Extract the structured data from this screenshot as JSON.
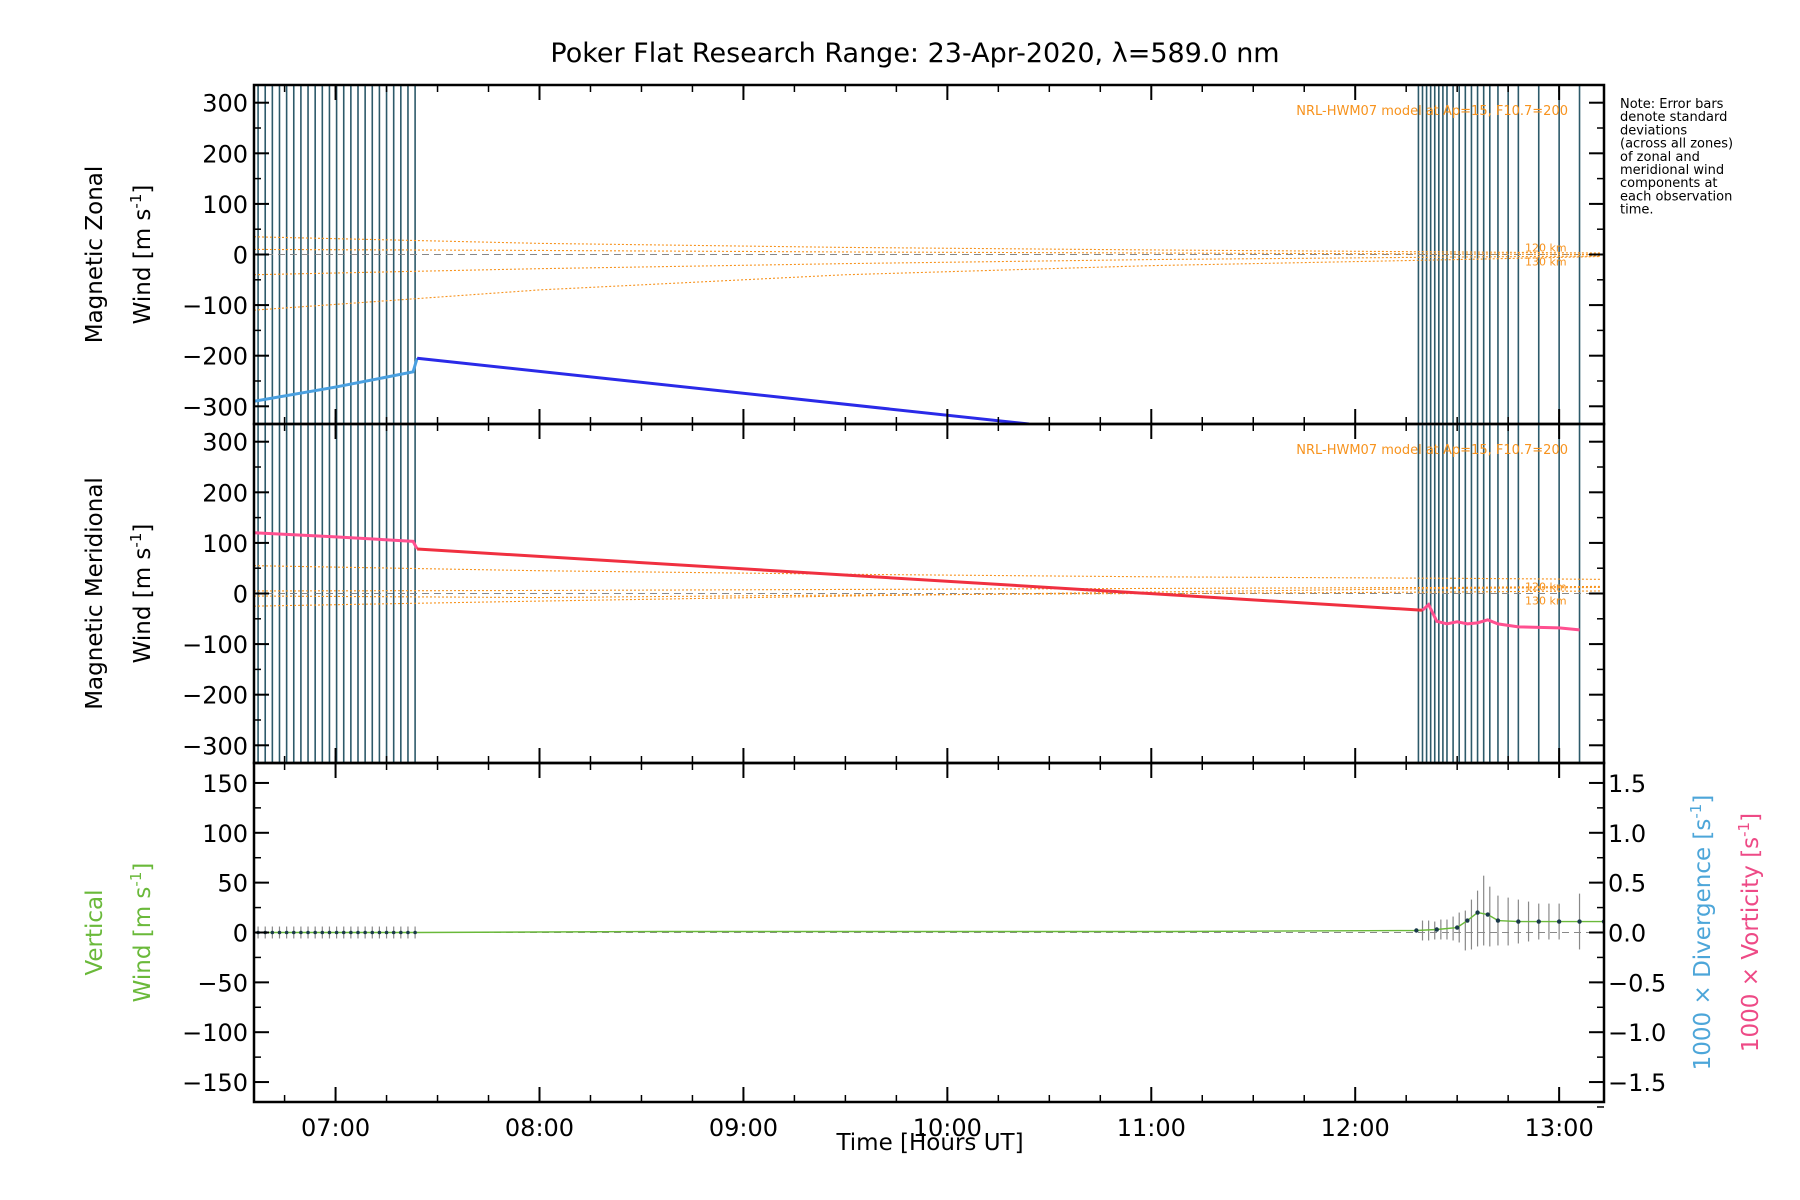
{
  "title": "Poker Flat Research Range: 23-Apr-2020, λ=589.0 nm",
  "note_lines": [
    "Note: Error bars",
    "denote standard",
    "deviations",
    "(across all zones)",
    "of zonal and",
    "meridional wind",
    "components at",
    "each observation",
    "time."
  ],
  "colors": {
    "zonal": "#2a2ae8",
    "zonal_early": "#4aa0e0",
    "meridional": "#f03040",
    "meridional_late": "#ff5090",
    "model": "#f7931e",
    "vertical": "#6ab93a",
    "divergence_label": "#4da6d9",
    "vorticity_label": "#ee4a86",
    "obs_lines": "#2d5a6a",
    "zero_line": "#888888",
    "error_bars": "#888888"
  },
  "chart_data": [
    {
      "type": "line",
      "panel": "zonal",
      "ylabel_line1": "Magnetic Zonal",
      "ylabel_line2": "Wind [m s",
      "ylabel_sup": "-1",
      "ylabel_close": "]",
      "ylim": [
        -335,
        335
      ],
      "yticks": [
        -300,
        -200,
        -100,
        0,
        100,
        200,
        300
      ],
      "ytick_labels": [
        "−300",
        "−200",
        "−100",
        "0",
        "100",
        "200",
        "300"
      ],
      "model_label": "NRL-HWM07 model at Ap=15, F10.7=200",
      "model_alt_labels": [
        "120 km",
        "130 km"
      ],
      "series": [
        {
          "role": "observed_early",
          "x": [
            6.6,
            7.0,
            7.38,
            7.4
          ],
          "y": [
            -290,
            -262,
            -232,
            -205
          ]
        },
        {
          "role": "interpolated",
          "x": [
            7.4,
            10.4
          ],
          "y": [
            -205,
            -335
          ]
        }
      ],
      "model_curves": [
        {
          "x": [
            6.6,
            8.0,
            9.5,
            11.0,
            12.5,
            13.2
          ],
          "y": [
            35,
            22,
            14,
            9,
            5,
            3
          ]
        },
        {
          "x": [
            6.6,
            8.0,
            9.5,
            11.0,
            12.5,
            13.2
          ],
          "y": [
            -40,
            -28,
            -18,
            -10,
            -5,
            -3
          ]
        },
        {
          "x": [
            6.6,
            8.0,
            9.5,
            11.0,
            12.5,
            13.2
          ],
          "y": [
            -110,
            -70,
            -40,
            -22,
            -10,
            -4
          ]
        },
        {
          "x": [
            6.6,
            8.0,
            9.5,
            11.0,
            12.5,
            13.2
          ],
          "y": [
            10,
            8,
            5,
            3,
            1,
            0
          ]
        }
      ]
    },
    {
      "type": "line",
      "panel": "meridional",
      "ylabel_line1": "Magnetic Meridional",
      "ylabel_line2": "Wind [m s",
      "ylabel_sup": "-1",
      "ylabel_close": "]",
      "ylim": [
        -335,
        335
      ],
      "yticks": [
        -300,
        -200,
        -100,
        0,
        100,
        200,
        300
      ],
      "ytick_labels": [
        "−300",
        "−200",
        "−100",
        "0",
        "100",
        "200",
        "300"
      ],
      "model_label": "NRL-HWM07 model at Ap=15, F10.7=200",
      "model_alt_labels": [
        "120 km",
        "130 km"
      ],
      "series": [
        {
          "role": "observed_early",
          "x": [
            6.6,
            7.0,
            7.38,
            7.4
          ],
          "y": [
            120,
            112,
            103,
            88
          ]
        },
        {
          "role": "interpolated",
          "x": [
            7.4,
            12.33
          ],
          "y": [
            88,
            -33
          ]
        },
        {
          "role": "observed_late",
          "x": [
            12.33,
            12.36,
            12.4,
            12.45,
            12.5,
            12.55,
            12.6,
            12.65,
            12.7,
            12.8,
            12.9,
            13.0,
            13.1
          ],
          "y": [
            -33,
            -22,
            -55,
            -60,
            -56,
            -60,
            -58,
            -52,
            -60,
            -66,
            -67,
            -68,
            -72
          ]
        }
      ],
      "model_curves": [
        {
          "x": [
            6.6,
            8.0,
            9.5,
            11.0,
            12.5,
            13.2
          ],
          "y": [
            55,
            45,
            38,
            33,
            30,
            28
          ]
        },
        {
          "x": [
            6.6,
            8.0,
            9.5,
            11.0,
            12.5,
            13.2
          ],
          "y": [
            -25,
            -15,
            -5,
            3,
            10,
            12
          ]
        },
        {
          "x": [
            6.6,
            8.0,
            9.5,
            11.0,
            12.5,
            13.2
          ],
          "y": [
            5,
            6,
            8,
            10,
            12,
            14
          ]
        },
        {
          "x": [
            6.6,
            8.0,
            9.5,
            11.0,
            12.5,
            13.2
          ],
          "y": [
            -5,
            -8,
            -3,
            0,
            3,
            5
          ]
        }
      ]
    },
    {
      "type": "line",
      "panel": "vertical",
      "ylabel_line1": "Vertical",
      "ylabel_line2": "Wind [m s",
      "ylabel_sup": "-1",
      "ylabel_close": "]",
      "ylim": [
        -170,
        170
      ],
      "yticks": [
        -150,
        -100,
        -50,
        0,
        50,
        100,
        150
      ],
      "ytick_labels": [
        "−150",
        "−100",
        "−50",
        "0",
        "50",
        "100",
        "150"
      ],
      "y2lim": [
        -1.7,
        1.7
      ],
      "y2ticks": [
        -1.5,
        -1.0,
        -0.5,
        0.0,
        0.5,
        1.0,
        1.5
      ],
      "y2tick_labels": [
        "−1.5",
        "−1.0",
        "−0.5",
        "0.0",
        "0.5",
        "1.0",
        "1.5"
      ],
      "y2label_div": "1000 × Divergence [s",
      "y2label_vor": "1000 × Vorticity [s",
      "y2label_sup": "-1",
      "y2label_close": "]",
      "xlim": [
        6.6,
        13.22
      ],
      "xticks": [
        7,
        8,
        9,
        10,
        11,
        12,
        13
      ],
      "xtick_labels": [
        "07:00",
        "08:00",
        "09:00",
        "10:00",
        "11:00",
        "12:00",
        "13:00"
      ],
      "xlabel": "Time [Hours UT]",
      "series": [
        {
          "role": "vertical_wind",
          "x": [
            6.6,
            7.4,
            8.6,
            9.85,
            11.1,
            12.3,
            12.4,
            12.5,
            12.55,
            12.6,
            12.65,
            12.7,
            12.8,
            12.9,
            13.0,
            13.1,
            13.22
          ],
          "y": [
            0,
            0,
            1,
            1,
            1,
            2,
            3,
            5,
            12,
            20,
            18,
            12,
            11,
            11,
            11,
            11,
            11
          ]
        }
      ],
      "error_bars": {
        "x": [
          12.33,
          12.36,
          12.39,
          12.42,
          12.45,
          12.48,
          12.51,
          12.54,
          12.57,
          12.6,
          12.63,
          12.66,
          12.7,
          12.75,
          12.8,
          12.85,
          12.9,
          12.95,
          13.0,
          13.1
        ],
        "y": [
          2,
          2,
          2,
          3,
          3,
          4,
          5,
          2,
          8,
          14,
          22,
          16,
          12,
          11,
          11,
          11,
          11,
          11,
          11,
          11
        ],
        "err": [
          10,
          10,
          9,
          10,
          10,
          12,
          15,
          20,
          25,
          28,
          35,
          30,
          25,
          24,
          22,
          20,
          18,
          18,
          18,
          28
        ]
      }
    }
  ]
}
